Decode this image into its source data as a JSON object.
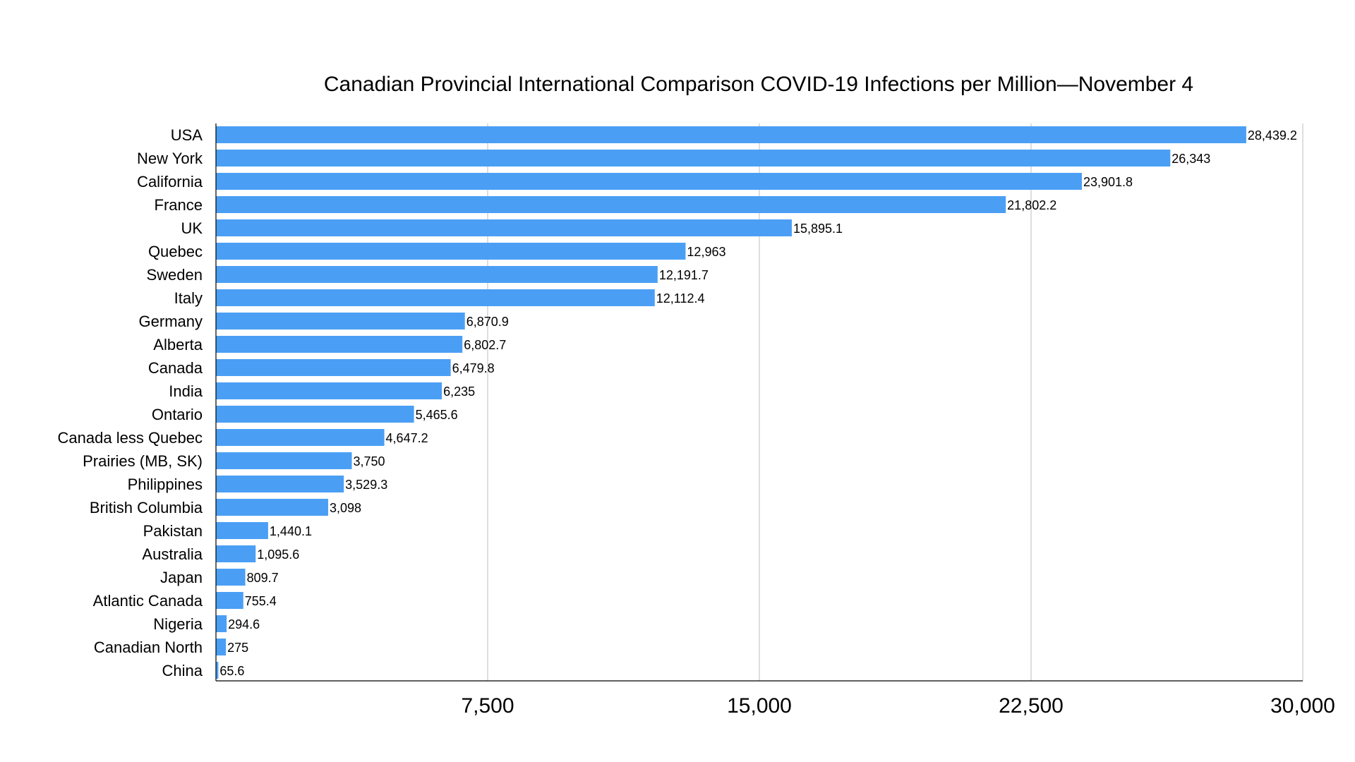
{
  "chart_data": {
    "type": "bar",
    "orientation": "horizontal",
    "title": "Canadian Provincial International Comparison COVID-19 Infections per Million—November 4",
    "xlabel": "",
    "ylabel": "",
    "xlim": [
      0,
      30000
    ],
    "x_ticks": [
      7500,
      15000,
      22500,
      30000
    ],
    "x_tick_labels": [
      "7,500",
      "15,000",
      "22,500",
      "30,000"
    ],
    "grid": true,
    "legend": "none",
    "bar_color": "#4a9ff5",
    "categories": [
      "USA",
      "New York",
      "California",
      "France",
      "UK",
      "Quebec",
      "Sweden",
      "Italy",
      "Germany",
      "Alberta",
      "Canada",
      "India",
      "Ontario",
      "Canada less Quebec",
      "Prairies (MB, SK)",
      "Philippines",
      "British Columbia",
      "Pakistan",
      "Australia",
      "Japan",
      "Atlantic Canada",
      "Nigeria",
      "Canadian North",
      "China"
    ],
    "values": [
      28439.2,
      26343,
      23901.8,
      21802.2,
      15895.1,
      12963,
      12191.7,
      12112.4,
      6870.9,
      6802.7,
      6479.8,
      6235,
      5465.6,
      4647.2,
      3750,
      3529.3,
      3098,
      1440.1,
      1095.6,
      809.7,
      755.4,
      294.6,
      275,
      65.6
    ],
    "value_labels": [
      "28,439.2",
      "26,343",
      "23,901.8",
      "21,802.2",
      "15,895.1",
      "12,963",
      "12,191.7",
      "12,112.4",
      "6,870.9",
      "6,802.7",
      "6,479.8",
      "6,235",
      "5,465.6",
      "4,647.2",
      "3,750",
      "3,529.3",
      "3,098",
      "1,440.1",
      "1,095.6",
      "809.7",
      "755.4",
      "294.6",
      "275",
      "65.6"
    ]
  }
}
